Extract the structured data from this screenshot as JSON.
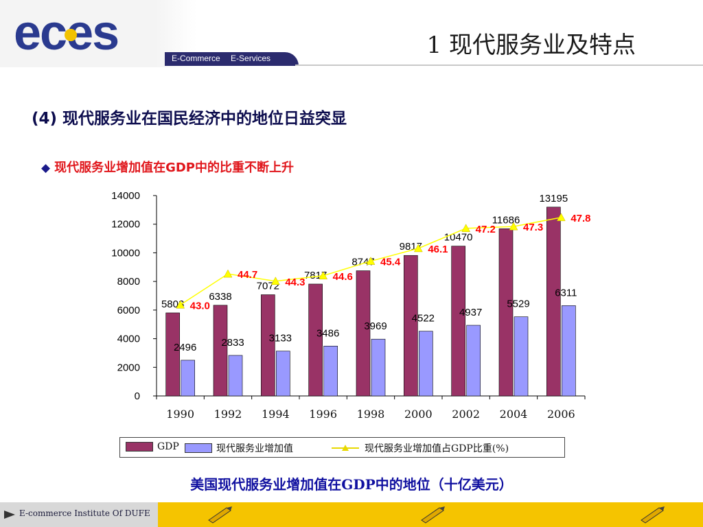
{
  "header": {
    "logo_text": "eces",
    "logo_sub_1": "E-Commerce",
    "logo_sub_2": "E-Services",
    "title": "1  现代服务业及特点"
  },
  "slide": {
    "subtitle": "(4) 现代服务业在国民经济中的地位日益突显",
    "bullet": "现代服务业增加值在GDP中的比重不断上升",
    "caption": "美国现代服务业增加值在GDP中的地位（十亿美元）"
  },
  "footer": {
    "text": "E-commerce Institute Of DUFE"
  },
  "colors": {
    "gdp_bar": "#993366",
    "service_bar": "#9999ff",
    "ratio_line": "#ffff00",
    "ratio_label": "#ff0000",
    "footer_bg": "#f5c400"
  },
  "chart_data": {
    "type": "bar",
    "categories": [
      "1990",
      "1992",
      "1994",
      "1996",
      "1998",
      "2000",
      "2002",
      "2004",
      "2006"
    ],
    "ylim": [
      0,
      14000
    ],
    "yticks": [
      0,
      2000,
      4000,
      6000,
      8000,
      10000,
      12000,
      14000
    ],
    "series": [
      {
        "name": "GDP",
        "type": "bar",
        "values": [
          5803,
          6338,
          7072,
          7817,
          8747,
          9817,
          10470,
          11686,
          13195
        ]
      },
      {
        "name": "现代服务业增加值",
        "type": "bar",
        "values": [
          2496,
          2833,
          3133,
          3486,
          3969,
          4522,
          4937,
          5529,
          6311
        ]
      },
      {
        "name": "现代服务业增加值占GDP比重(%)",
        "type": "line",
        "values": [
          43.0,
          44.7,
          44.3,
          44.6,
          45.4,
          46.1,
          47.2,
          47.3,
          47.8
        ],
        "labels": [
          "43.0",
          "44.7",
          "44.3",
          "44.6",
          "45.4",
          "46.1",
          "47.2",
          "47.3",
          "47.8"
        ]
      }
    ],
    "legend_position": "bottom",
    "grid": false
  }
}
